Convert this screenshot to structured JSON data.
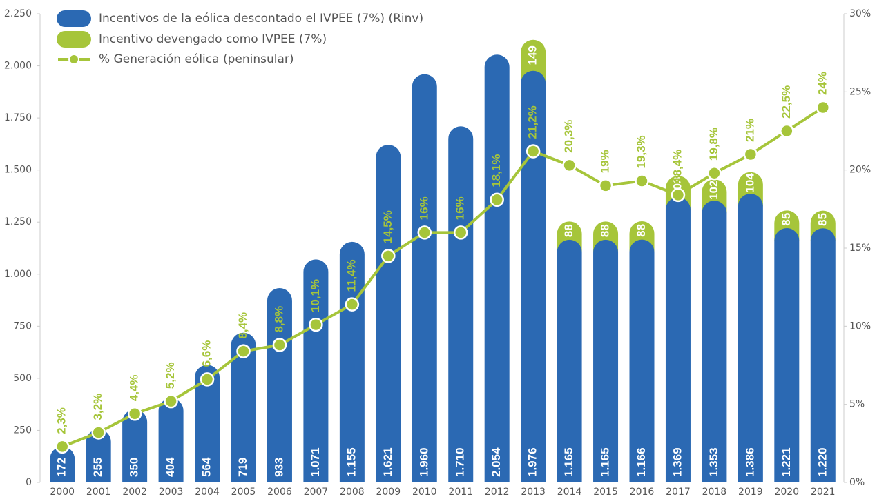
{
  "chart_data": {
    "type": "stacked-bar-line",
    "categories": [
      "2000",
      "2001",
      "2002",
      "2003",
      "2004",
      "2005",
      "2006",
      "2007",
      "2008",
      "2009",
      "2010",
      "2011",
      "2012",
      "2013",
      "2014",
      "2015",
      "2016",
      "2017",
      "2018",
      "2019",
      "2020",
      "2021"
    ],
    "series": [
      {
        "name": "Incentivos de la eólica descontado el IVPEE (7%) (Rinv)",
        "color": "#2b69b3",
        "type": "bar",
        "values": [
          172,
          255,
          350,
          404,
          564,
          719,
          933,
          1071,
          1155,
          1621,
          1960,
          1710,
          2054,
          1976,
          1165,
          1165,
          1166,
          1369,
          1353,
          1386,
          1221,
          1220
        ],
        "value_labels": [
          "172",
          "255",
          "350",
          "404",
          "564",
          "719",
          "933",
          "1.071",
          "1.155",
          "1.621",
          "1.960",
          "1.710",
          "2.054",
          "1.976",
          "1.165",
          "1.165",
          "1.166",
          "1.369",
          "1.353",
          "1.386",
          "1.221",
          "1.220"
        ]
      },
      {
        "name": "Incentivo devengado como IVPEE (7%)",
        "color": "#a6c53a",
        "type": "bar",
        "values": [
          null,
          null,
          null,
          null,
          null,
          null,
          null,
          null,
          null,
          null,
          null,
          null,
          null,
          149,
          88,
          88,
          88,
          103,
          102,
          104,
          85,
          85
        ]
      },
      {
        "name": "% Generación eólica (peninsular)",
        "color": "#a6c53a",
        "type": "line",
        "axis": "y2",
        "values": [
          2.3,
          3.2,
          4.4,
          5.2,
          6.6,
          8.4,
          8.8,
          10.1,
          11.4,
          14.5,
          16,
          16,
          18.1,
          21.2,
          20.3,
          19,
          19.3,
          18.4,
          19.8,
          21,
          22.5,
          24
        ],
        "value_labels": [
          "2,3%",
          "3,2%",
          "4,4%",
          "5,2%",
          "6,6%",
          "8,4%",
          "8,8%",
          "10,1%",
          "11,4%",
          "14,5%",
          "16%",
          "16%",
          "18,1%",
          "21,2%",
          "20,3%",
          "19%",
          "19,3%",
          "18,4%",
          "19,8%",
          "21%",
          "22,5%",
          "24%"
        ]
      }
    ],
    "ylim": [
      0,
      2250
    ],
    "yticks": [
      0,
      250,
      500,
      750,
      {
        "value": 1000,
        "label": "1.000"
      },
      {
        "value": 1250,
        "label": "1.250"
      },
      {
        "value": 1500,
        "label": "1.500"
      },
      {
        "value": 1750,
        "label": "1.750"
      },
      {
        "value": 2000,
        "label": "2.000"
      },
      {
        "value": 2250,
        "label": "2.250"
      }
    ],
    "y2lim": [
      0,
      30
    ],
    "y2ticks": [
      {
        "value": 0,
        "label": "0%"
      },
      {
        "value": 5,
        "label": "5%"
      },
      {
        "value": 10,
        "label": "10%"
      },
      {
        "value": 15,
        "label": "15%"
      },
      {
        "value": 20,
        "label": "20%"
      },
      {
        "value": 25,
        "label": "25%"
      },
      {
        "value": 30,
        "label": "30%"
      }
    ],
    "legend": "top-left"
  }
}
